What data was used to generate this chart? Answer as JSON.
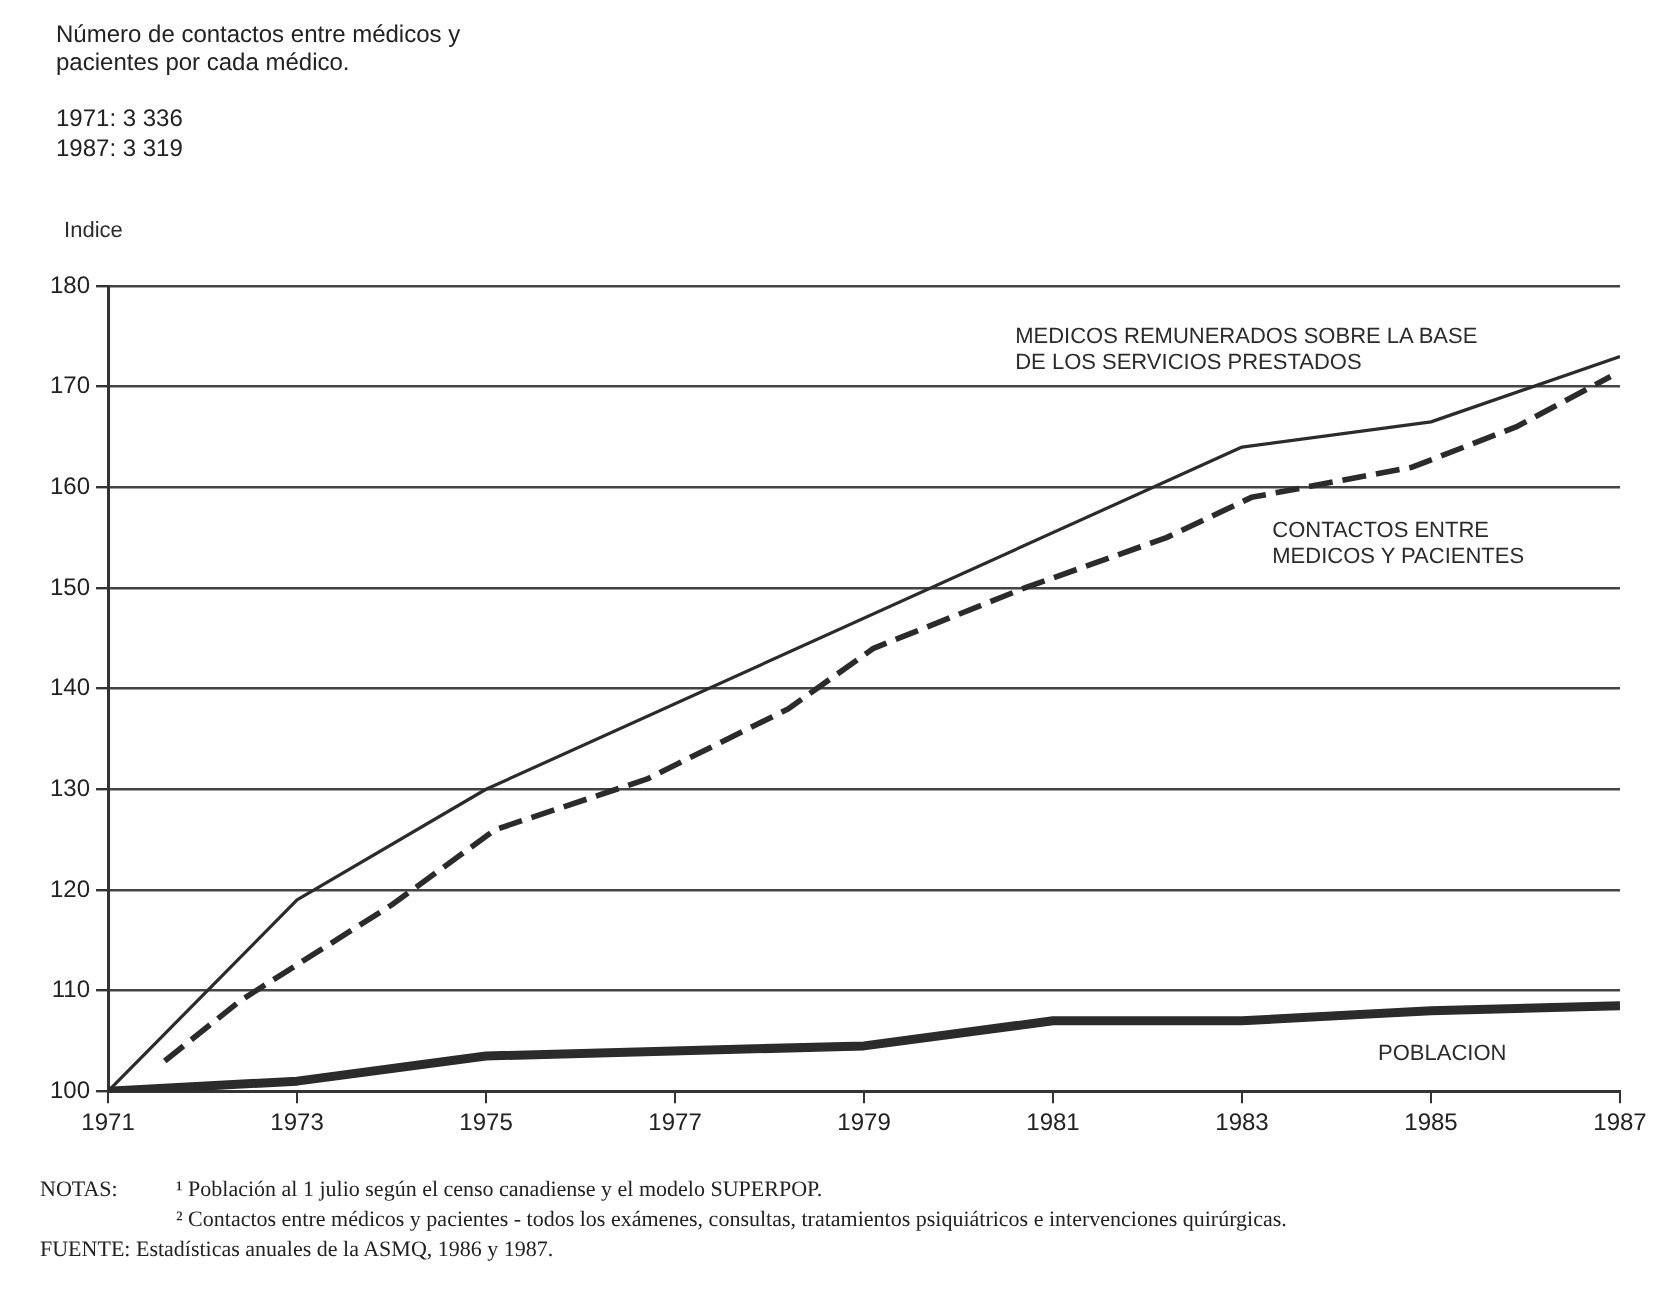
{
  "chart_data": {
    "type": "line",
    "title": "Número de contactos entre médicos y pacientes por cada médico.",
    "subtitle": "1971: 3 336\n1987: 3 319",
    "ylabel": "Indice",
    "annotations": [
      "NOTAS:",
      "¹ Población al 1 julio según el censo canadiense y el modelo SUPERPOP.",
      "² Contactos entre médicos y pacientes - todos los exámenes, consultas, tratamientos psiquiátricos e intervenciones quirúrgicas.",
      "FUENTE: Estadísticas anuales de la ASMQ, 1986 y 1987."
    ],
    "series": [
      {
        "name": "POBLACION",
        "color": "#2b2b2b",
        "line_style": "solid",
        "x": [
          1971,
          1973,
          1975,
          1979,
          1981,
          1983,
          1985,
          1987
        ],
        "values": [
          100,
          101,
          103.5,
          104.5,
          107,
          107,
          108,
          108.5
        ]
      },
      {
        "name": "CONTACTOS ENTRE\nMEDICOS Y PACIENTES",
        "color": "#2b2b2b",
        "line_style": "dashed",
        "x": [
          1971.6,
          1972.4,
          1974,
          1975.1,
          1976.7,
          1978.2,
          1979.1,
          1980.7,
          1982.2,
          1983.1,
          1984.8,
          1985.9,
          1986.9
        ],
        "values": [
          103,
          109,
          118.5,
          126,
          131,
          138,
          144,
          150,
          155,
          159,
          162,
          166,
          171
        ]
      },
      {
        "name": "MEDICOS REMUNERADOS SOBRE LA BASE\nDE LOS SERVICIOS PRESTADOS",
        "color": "#2b2b2b",
        "line_style": "solid",
        "x": [
          1971,
          1973,
          1975,
          1983,
          1985,
          1987
        ],
        "values": [
          100,
          119,
          130,
          164,
          166.5,
          173
        ]
      }
    ],
    "xlim": [
      1971,
      1987
    ],
    "xticks": [
      1971,
      1973,
      1975,
      1977,
      1979,
      1981,
      1983,
      1985,
      1987
    ],
    "ylim": [
      100,
      180
    ],
    "yticks": [
      100,
      110,
      120,
      130,
      140,
      150,
      160,
      170,
      180
    ],
    "grid": "y",
    "legend": false,
    "marker": "none"
  }
}
